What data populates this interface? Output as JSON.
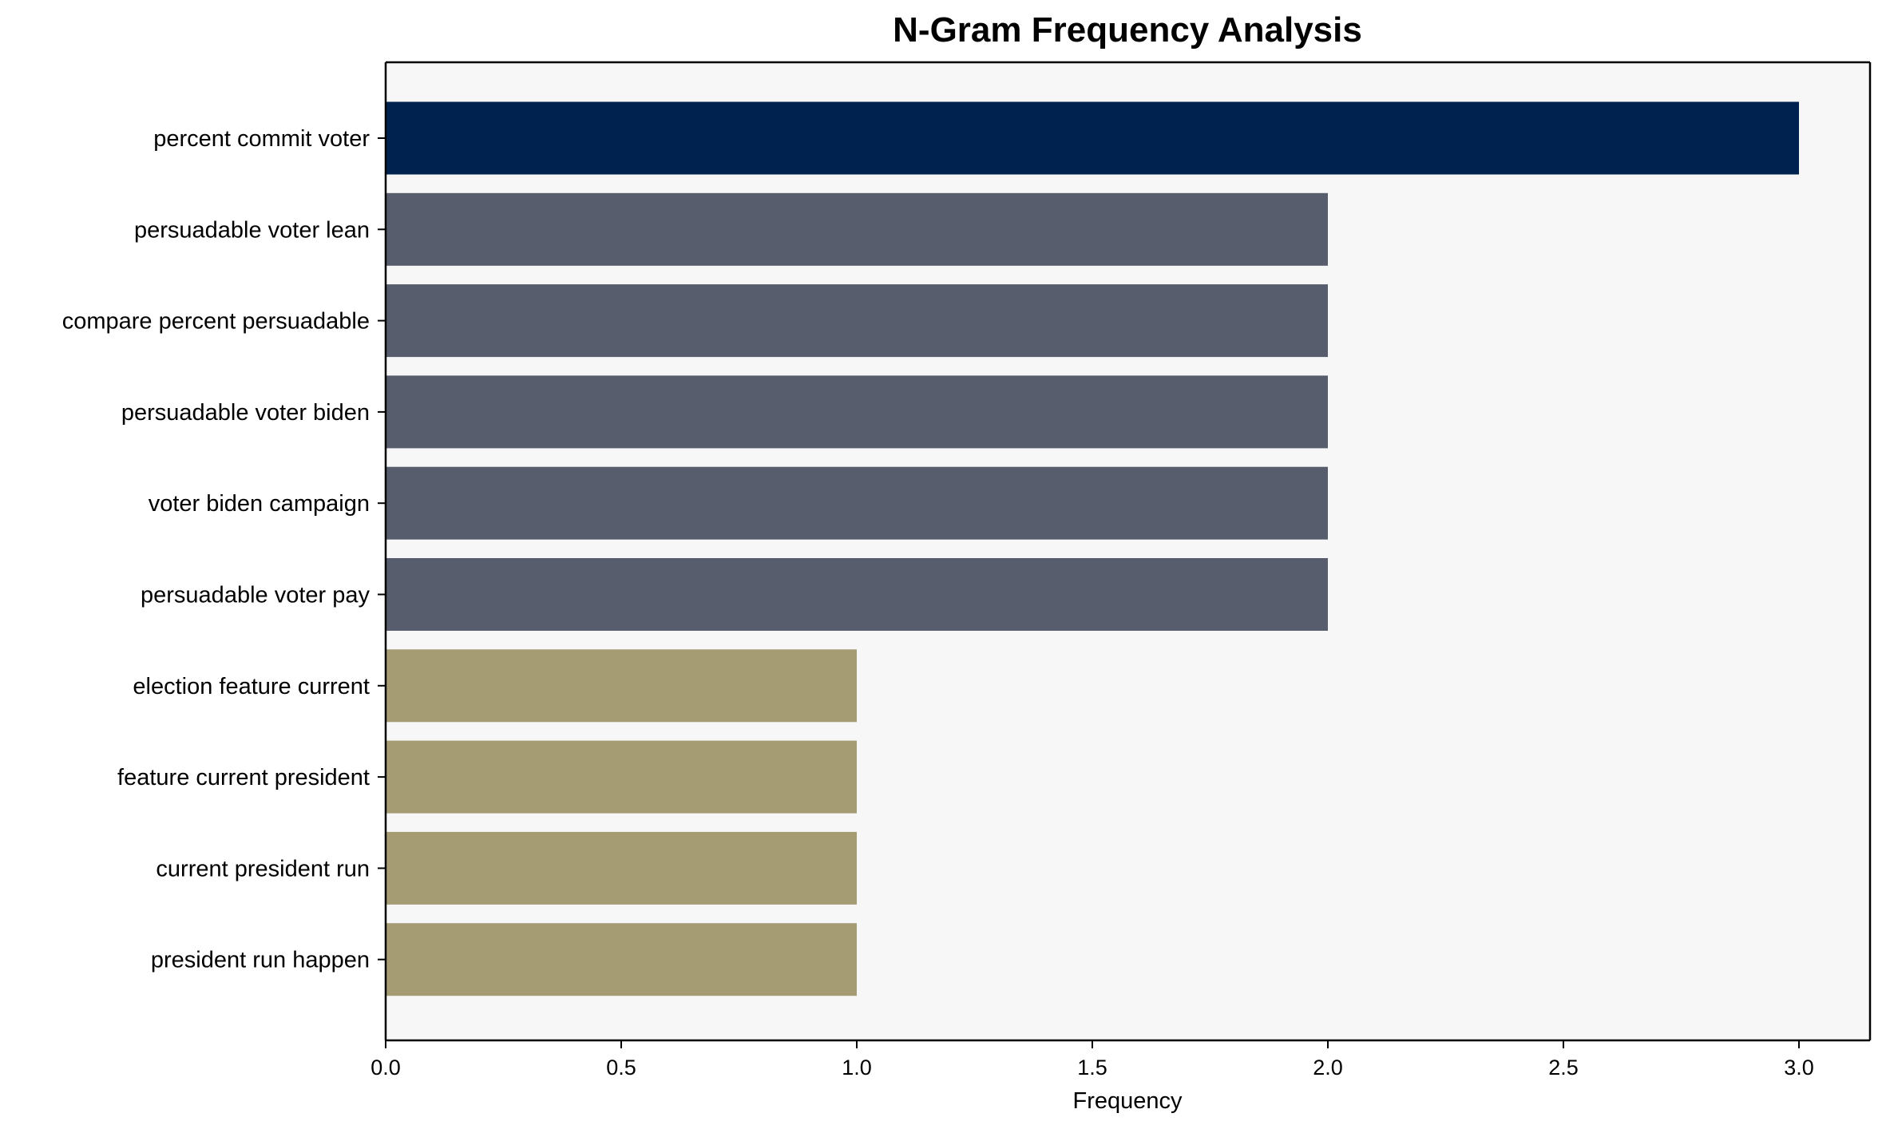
{
  "chart_data": {
    "type": "bar",
    "orientation": "horizontal",
    "title": "N-Gram Frequency Analysis",
    "xlabel": "Frequency",
    "ylabel": "",
    "xlim": [
      0,
      3.15
    ],
    "xticks": [
      "0.0",
      "0.5",
      "1.0",
      "1.5",
      "2.0",
      "2.5",
      "3.0"
    ],
    "grid": false,
    "background": "#f7f7f7",
    "categories": [
      "percent commit voter",
      "persuadable voter lean",
      "compare percent persuadable",
      "persuadable voter biden",
      "voter biden campaign",
      "persuadable voter pay",
      "election feature current",
      "feature current president",
      "current president run",
      "president run happen"
    ],
    "values": [
      3,
      2,
      2,
      2,
      2,
      2,
      1,
      1,
      1,
      1
    ],
    "colors": [
      "#00224e",
      "#575d6d",
      "#575d6d",
      "#575d6d",
      "#575d6d",
      "#575d6d",
      "#a59c74",
      "#a59c74",
      "#a59c74",
      "#a59c74"
    ]
  }
}
